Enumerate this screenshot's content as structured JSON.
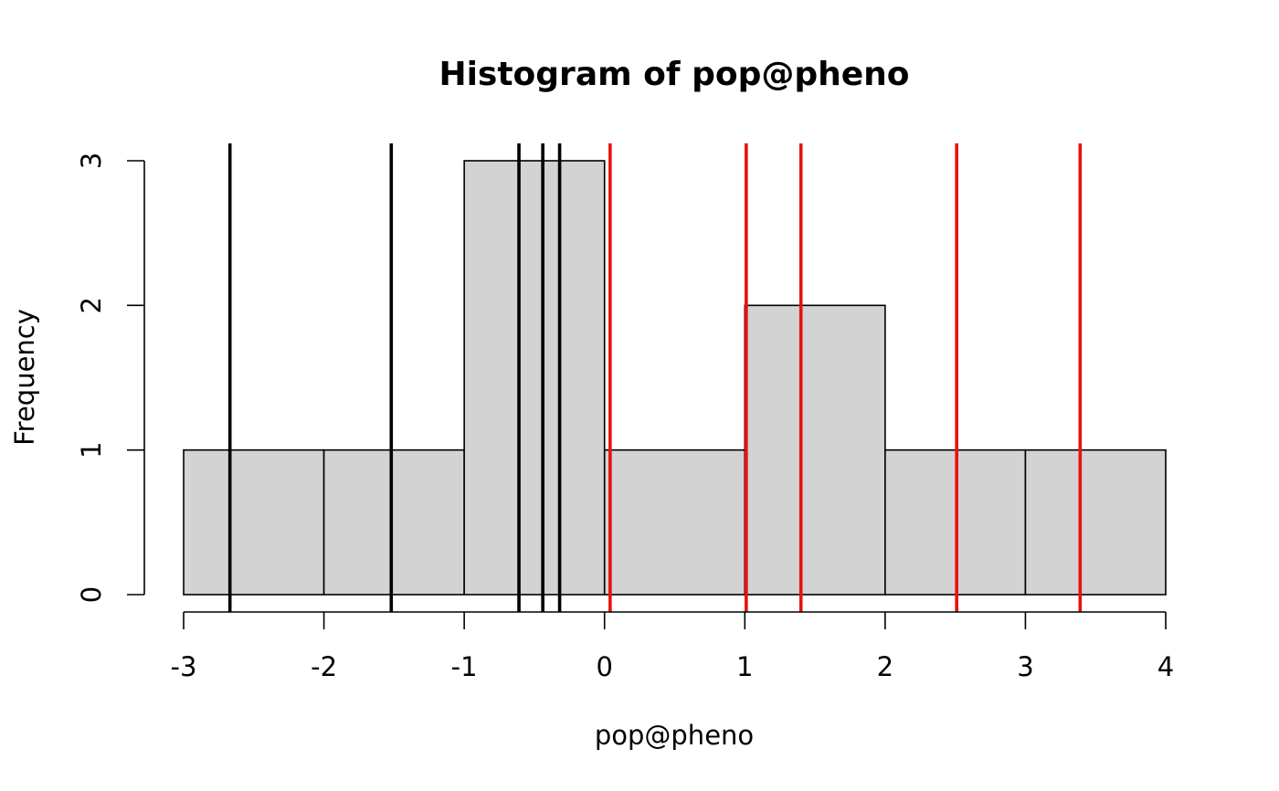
{
  "chart_data": {
    "type": "bar",
    "title": "Histogram of pop@pheno",
    "xlabel": "pop@pheno",
    "ylabel": "Frequency",
    "xlim": [
      -3,
      4
    ],
    "ylim": [
      0,
      3
    ],
    "bins": [
      {
        "from": -3,
        "to": -2,
        "count": 1
      },
      {
        "from": -2,
        "to": -1,
        "count": 1
      },
      {
        "from": -1,
        "to": 0,
        "count": 3
      },
      {
        "from": 0,
        "to": 1,
        "count": 1
      },
      {
        "from": 1,
        "to": 2,
        "count": 2
      },
      {
        "from": 2,
        "to": 3,
        "count": 1
      },
      {
        "from": 3,
        "to": 4,
        "count": 1
      }
    ],
    "x_ticks": [
      "-3",
      "-2",
      "-1",
      "0",
      "1",
      "2",
      "3",
      "4"
    ],
    "y_ticks": [
      "0",
      "1",
      "2",
      "3"
    ],
    "vlines": [
      {
        "name": "black",
        "color": "#000000",
        "x": [
          -2.67,
          -1.52,
          -0.61,
          -0.44,
          -0.32
        ]
      },
      {
        "name": "red",
        "color": "#e8120c",
        "x": [
          0.04,
          1.01,
          1.4,
          2.51,
          3.39
        ]
      }
    ],
    "bar_fill": "#d3d3d3",
    "grid": false
  }
}
